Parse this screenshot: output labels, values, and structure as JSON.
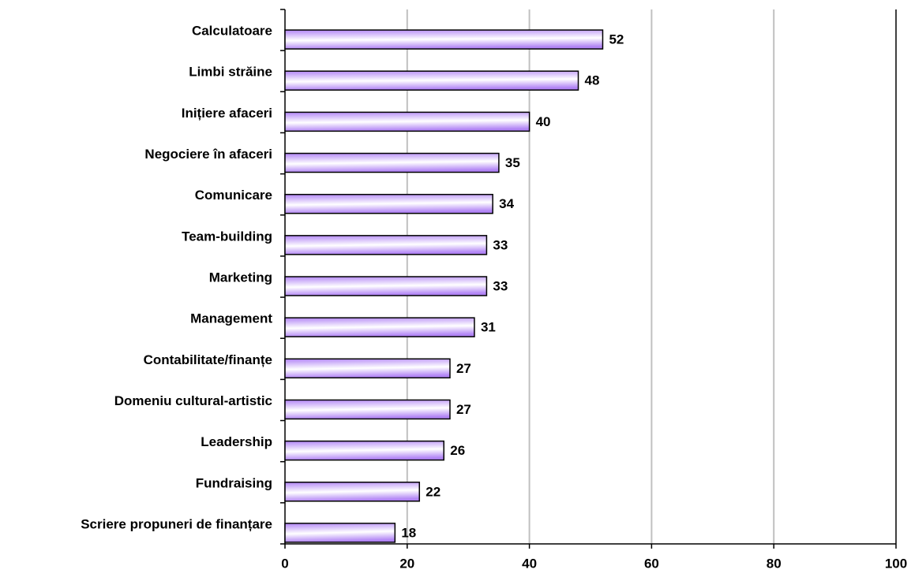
{
  "chart_data": {
    "type": "bar",
    "orientation": "horizontal",
    "categories": [
      "Calculatoare",
      "Limbi străine",
      "Inițiere afaceri",
      "Negociere în afaceri",
      "Comunicare",
      "Team-building",
      "Marketing",
      "Management",
      "Contabilitate/finanțe",
      "Domeniu cultural-artistic",
      "Leadership",
      "Fundraising",
      "Scriere propuneri de finanțare"
    ],
    "values": [
      52,
      48,
      40,
      35,
      34,
      33,
      33,
      31,
      27,
      27,
      26,
      22,
      18
    ],
    "color": "#b184f5",
    "xlim": [
      0,
      100
    ],
    "xticks": [
      0,
      20,
      40,
      60,
      80,
      100
    ],
    "grid": true
  }
}
